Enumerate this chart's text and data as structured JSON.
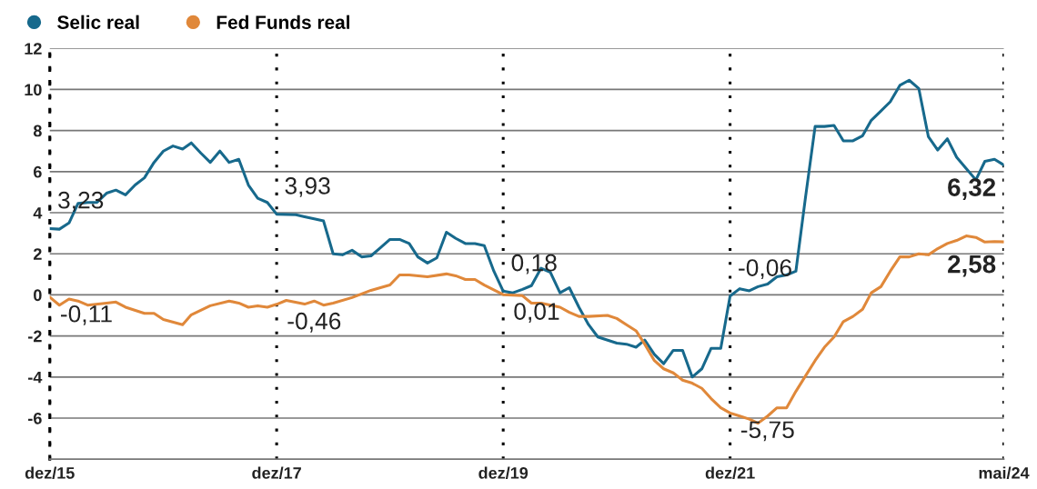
{
  "chart_data": {
    "type": "line",
    "xlim": [
      "2015-12",
      "2024-05"
    ],
    "xticks": [
      {
        "value": "2015-12",
        "label": "dez/15"
      },
      {
        "value": "2017-12",
        "label": "dez/17"
      },
      {
        "value": "2019-12",
        "label": "dez/19"
      },
      {
        "value": "2021-12",
        "label": "dez/21"
      },
      {
        "value": "2024-05",
        "label": "mai/24"
      }
    ],
    "ylim": [
      -8,
      12
    ],
    "yticks": [
      12,
      10,
      8,
      6,
      4,
      2,
      0,
      -2,
      -4,
      -6
    ],
    "grid": true,
    "legend": "top left",
    "series": [
      {
        "name": "Selic real",
        "color": "#17698c",
        "x": [
          "2015-12",
          "2016-01",
          "2016-02",
          "2016-03",
          "2016-04",
          "2016-05",
          "2016-06",
          "2016-07",
          "2016-08",
          "2016-09",
          "2016-10",
          "2016-11",
          "2016-12",
          "2017-01",
          "2017-02",
          "2017-03",
          "2017-04",
          "2017-05",
          "2017-06",
          "2017-07",
          "2017-08",
          "2017-09",
          "2017-10",
          "2017-11",
          "2017-12",
          "2018-02",
          "2018-03",
          "2018-04",
          "2018-05",
          "2018-06",
          "2018-07",
          "2018-08",
          "2018-09",
          "2018-10",
          "2018-11",
          "2018-12",
          "2019-01",
          "2019-02",
          "2019-03",
          "2019-04",
          "2019-05",
          "2019-06",
          "2019-07",
          "2019-08",
          "2019-09",
          "2019-10",
          "2019-11",
          "2019-12",
          "2020-01",
          "2020-02",
          "2020-03",
          "2020-04",
          "2020-05",
          "2020-06",
          "2020-07",
          "2020-08",
          "2020-09",
          "2020-10",
          "2020-12",
          "2021-01",
          "2021-02",
          "2021-03",
          "2021-04",
          "2021-05",
          "2021-06",
          "2021-07",
          "2021-08",
          "2021-09",
          "2021-10",
          "2021-11",
          "2021-12",
          "2022-01",
          "2022-02",
          "2022-03",
          "2022-04",
          "2022-05",
          "2022-06",
          "2022-07",
          "2022-08",
          "2022-09",
          "2022-10",
          "2022-11",
          "2022-12",
          "2023-01",
          "2023-02",
          "2023-03",
          "2023-04",
          "2023-05",
          "2023-06",
          "2023-07",
          "2023-08",
          "2023-09",
          "2023-10",
          "2023-11",
          "2023-12",
          "2024-01",
          "2024-02",
          "2024-03",
          "2024-04",
          "2024-05"
        ],
        "values": [
          3.23,
          3.2,
          3.5,
          4.45,
          4.5,
          4.5,
          4.95,
          5.1,
          4.87,
          5.35,
          5.7,
          6.45,
          7.0,
          7.25,
          7.1,
          7.4,
          6.9,
          6.45,
          7.0,
          6.45,
          6.6,
          5.35,
          4.7,
          4.5,
          3.93,
          3.9,
          3.8,
          3.7,
          3.6,
          2.0,
          1.95,
          2.17,
          1.85,
          1.9,
          2.3,
          2.7,
          2.7,
          2.5,
          1.85,
          1.55,
          1.8,
          3.05,
          2.75,
          2.5,
          2.5,
          2.4,
          1.15,
          0.18,
          0.1,
          0.27,
          0.45,
          1.3,
          1.1,
          0.1,
          0.35,
          -0.6,
          -1.45,
          -2.05,
          -2.35,
          -2.4,
          -2.55,
          -2.2,
          -2.9,
          -3.35,
          -2.7,
          -2.7,
          -4.0,
          -3.6,
          -2.6,
          -2.6,
          -0.06,
          0.3,
          0.2,
          0.4,
          0.53,
          0.88,
          0.97,
          1.15,
          4.75,
          8.2,
          8.2,
          8.25,
          7.5,
          7.5,
          7.75,
          8.5,
          8.95,
          9.4,
          10.2,
          10.45,
          10.05,
          7.7,
          7.05,
          7.6,
          6.7,
          6.15,
          5.6,
          6.5,
          6.6,
          6.32
        ]
      },
      {
        "name": "Fed Funds real",
        "color": "#e0883a",
        "x": [
          "2015-12",
          "2016-01",
          "2016-02",
          "2016-03",
          "2016-04",
          "2016-06",
          "2016-07",
          "2016-08",
          "2016-10",
          "2016-11",
          "2016-12",
          "2017-02",
          "2017-03",
          "2017-05",
          "2017-07",
          "2017-08",
          "2017-09",
          "2017-10",
          "2017-11",
          "2017-12",
          "2018-01",
          "2018-03",
          "2018-04",
          "2018-05",
          "2018-06",
          "2018-08",
          "2018-10",
          "2018-12",
          "2019-01",
          "2019-02",
          "2019-04",
          "2019-06",
          "2019-07",
          "2019-08",
          "2019-09",
          "2019-10",
          "2019-12",
          "2020-02",
          "2020-03",
          "2020-04",
          "2020-06",
          "2020-07",
          "2020-08",
          "2020-09",
          "2020-11",
          "2020-12",
          "2021-01",
          "2021-02",
          "2021-03",
          "2021-04",
          "2021-05",
          "2021-06",
          "2021-07",
          "2021-08",
          "2021-09",
          "2021-10",
          "2021-11",
          "2021-12",
          "2022-01",
          "2022-02",
          "2022-03",
          "2022-04",
          "2022-05",
          "2022-06",
          "2022-07",
          "2022-08",
          "2022-09",
          "2022-10",
          "2022-11",
          "2022-12",
          "2023-01",
          "2023-02",
          "2023-03",
          "2023-04",
          "2023-05",
          "2023-06",
          "2023-07",
          "2023-08",
          "2023-09",
          "2023-10",
          "2023-11",
          "2023-12",
          "2024-01",
          "2024-02",
          "2024-03",
          "2024-04",
          "2024-05"
        ],
        "values": [
          -0.11,
          -0.5,
          -0.2,
          -0.3,
          -0.5,
          -0.4,
          -0.35,
          -0.6,
          -0.9,
          -0.9,
          -1.2,
          -1.45,
          -0.97,
          -0.53,
          -0.3,
          -0.4,
          -0.6,
          -0.53,
          -0.6,
          -0.46,
          -0.27,
          -0.45,
          -0.3,
          -0.5,
          -0.4,
          -0.13,
          0.22,
          0.48,
          0.97,
          0.97,
          0.88,
          1.02,
          0.93,
          0.75,
          0.75,
          0.48,
          0.01,
          -0.04,
          -0.4,
          -0.4,
          -0.6,
          -0.85,
          -1.05,
          -1.05,
          -1.0,
          -1.15,
          -1.45,
          -1.75,
          -2.4,
          -3.2,
          -3.6,
          -3.8,
          -4.15,
          -4.3,
          -4.55,
          -5.05,
          -5.5,
          -5.75,
          -5.9,
          -6.05,
          -6.25,
          -5.9,
          -5.5,
          -5.5,
          -4.7,
          -3.95,
          -3.2,
          -2.55,
          -2.05,
          -1.3,
          -1.05,
          -0.7,
          0.1,
          0.4,
          1.15,
          1.85,
          1.85,
          2.0,
          1.95,
          2.25,
          2.5,
          2.65,
          2.87,
          2.8,
          2.57,
          2.6,
          2.58
        ]
      }
    ],
    "annotations": [
      {
        "text": "3,23",
        "x": "2015-12",
        "y": 3.23
      },
      {
        "text": "-0,11",
        "x": "2015-12",
        "y": -0.11
      },
      {
        "text": "3,93",
        "x": "2017-12",
        "y": 3.93
      },
      {
        "text": "-0,46",
        "x": "2017-12",
        "y": -0.46
      },
      {
        "text": "0,18",
        "x": "2019-12",
        "y": 0.18
      },
      {
        "text": "0,01",
        "x": "2019-12",
        "y": 0.01
      },
      {
        "text": "-0,06",
        "x": "2021-12",
        "y": -0.06
      },
      {
        "text": "-5,75",
        "x": "2021-12",
        "y": -5.75
      },
      {
        "text": "6,32",
        "x": "2024-05",
        "y": 6.32
      },
      {
        "text": "2,58",
        "x": "2024-05",
        "y": 2.58
      }
    ]
  }
}
